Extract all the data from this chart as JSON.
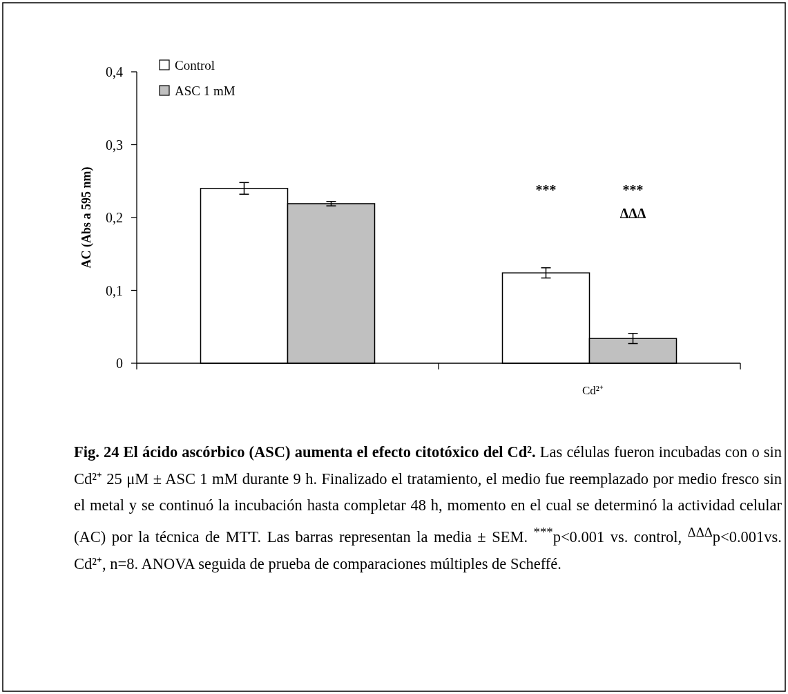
{
  "chart_data": {
    "type": "bar",
    "title": "Fig. 24 El ácido ascórbico (ASC) aumenta el efecto citotóxico del Cd².",
    "ylabel": "AC (Abs a 595 nm)",
    "categories": [
      null,
      "Cd²⁺"
    ],
    "series": [
      {
        "name": "Control",
        "color": "#ffffff",
        "values": [
          0.24,
          0.124
        ],
        "errors": [
          0.008,
          0.007
        ]
      },
      {
        "name": "ASC 1 mM",
        "color": "#c0c0c0",
        "values": [
          0.219,
          0.034
        ],
        "errors": [
          0.003,
          0.007
        ]
      }
    ],
    "ylim": [
      0,
      0.4
    ],
    "yticks": [
      0,
      {
        "value": 0.1,
        "label": "0,1"
      },
      {
        "value": 0.2,
        "label": "0,2"
      },
      {
        "value": 0.3,
        "label": "0,3"
      },
      {
        "value": 0.4,
        "label": "0,4"
      }
    ],
    "legend": "top left",
    "grid": false,
    "annotations": [
      "***",
      "***",
      "ΔΔΔ",
      "Las células fueron incubadas con o sin Cd²⁺ 25 μM ± ASC 1 mM durante 9 h. Finalizado el tratamiento, el medio fue reemplazado por medio fresco sin el metal y se continuó la incubación hasta completar 48 h, momento en el cual se determinó la actividad celular (AC) por la técnica de MTT. Las barras representan la media ± SEM. $^{***}$p<0.001 vs. control, $^{ΔΔΔ}$p<0.001vs. Cd²⁺, n=8. ANOVA seguida de prueba de comparaciones múltiples de Scheffé."
    ]
  }
}
